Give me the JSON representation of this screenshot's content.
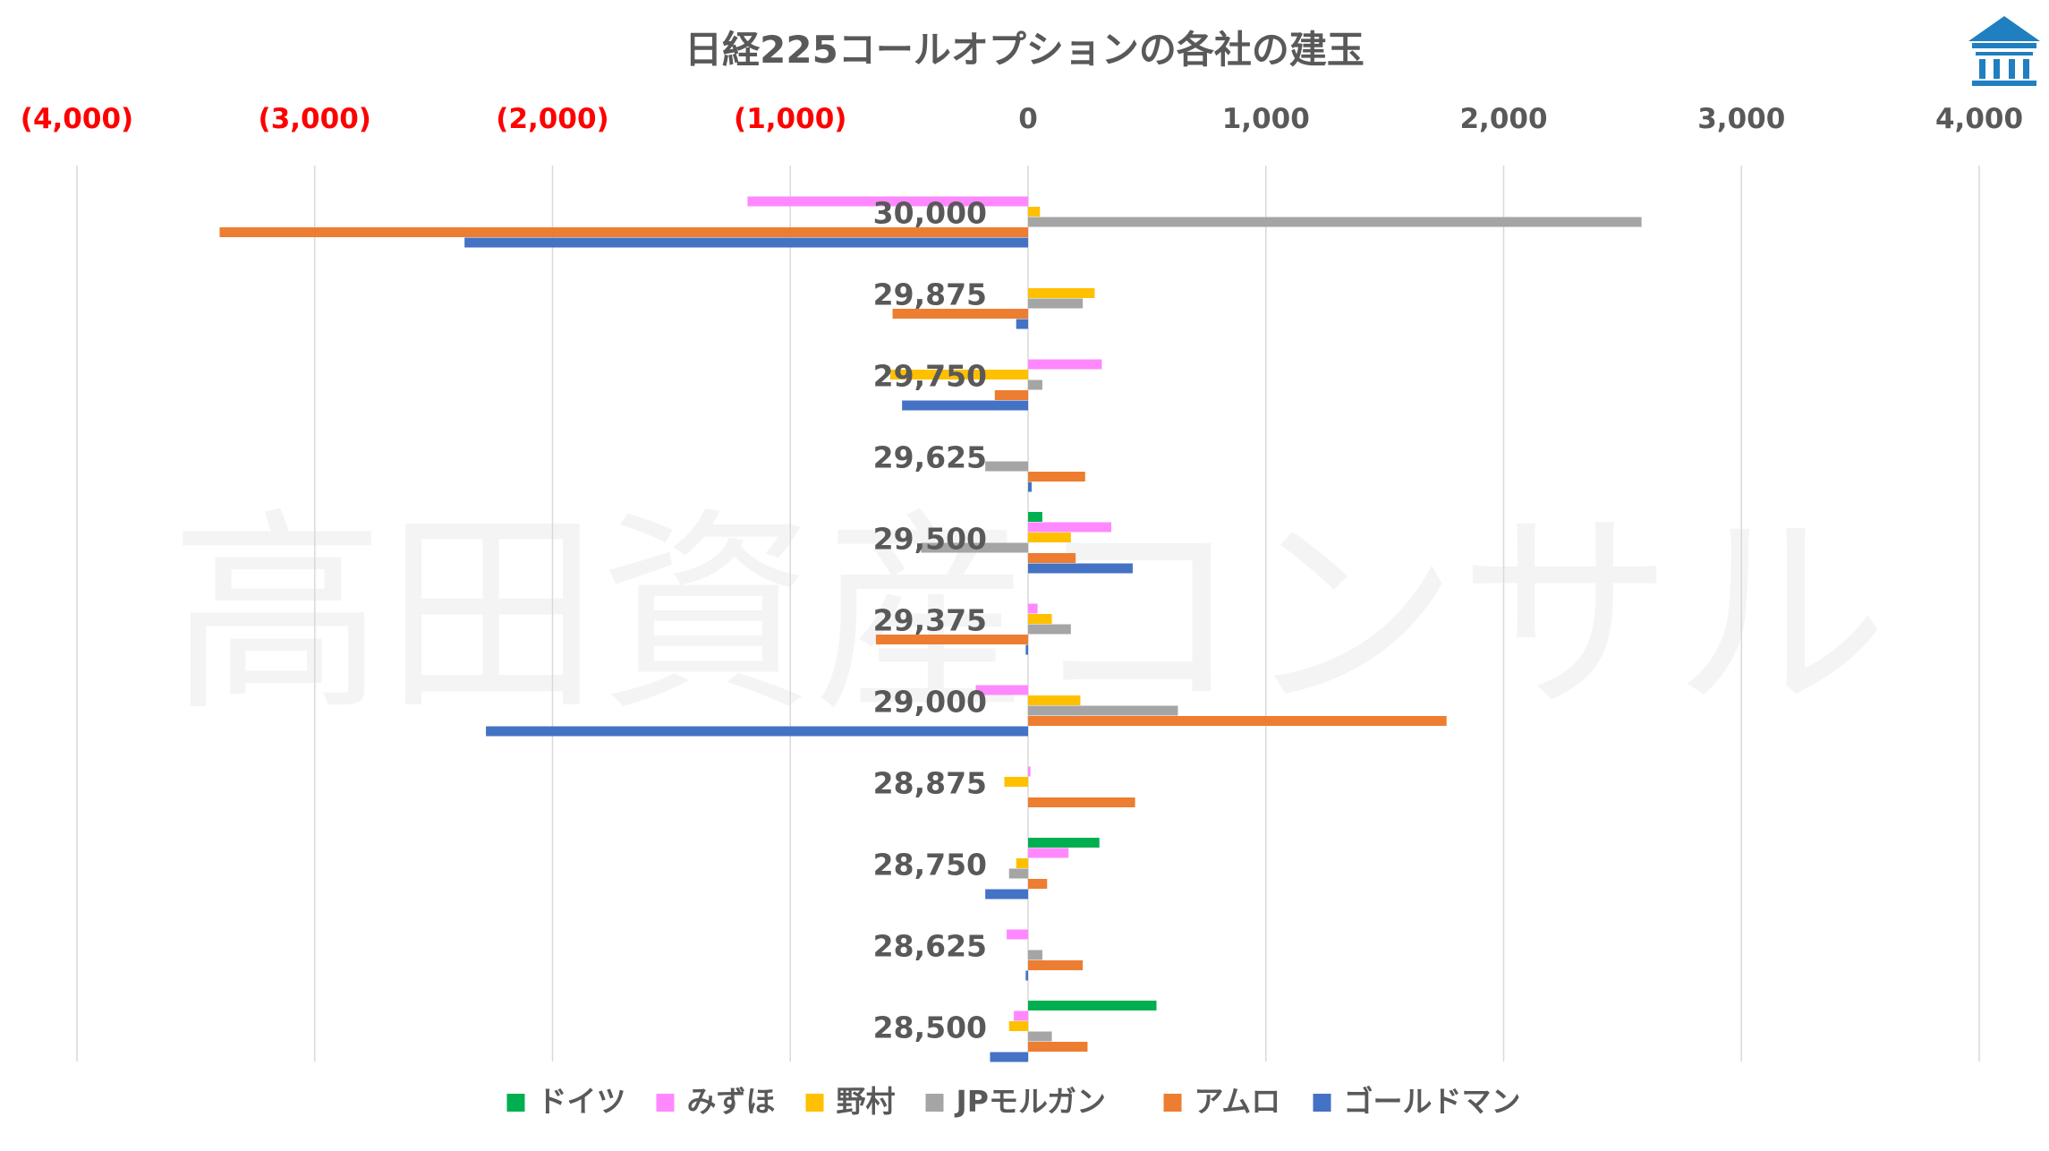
{
  "chart_data": {
    "type": "bar",
    "orientation": "horizontal",
    "title": "日経225コールオプションの各社の建玉",
    "watermark": "高田資産コンサル",
    "xlim": [
      -4000,
      4000
    ],
    "x_ticks": [
      {
        "value": -4000,
        "label": "(4,000)"
      },
      {
        "value": -3000,
        "label": "(3,000)"
      },
      {
        "value": -2000,
        "label": "(2,000)"
      },
      {
        "value": -1000,
        "label": "(1,000)"
      },
      {
        "value": 0,
        "label": "0"
      },
      {
        "value": 1000,
        "label": "1,000"
      },
      {
        "value": 2000,
        "label": "2,000"
      },
      {
        "value": 3000,
        "label": "3,000"
      },
      {
        "value": 4000,
        "label": "4,000"
      }
    ],
    "negative_tick_color": "#ff0000",
    "positive_tick_color": "#595959",
    "grid": true,
    "legend_position": "bottom",
    "categories": [
      "30,000",
      "29,875",
      "29,750",
      "29,625",
      "29,500",
      "29,375",
      "29,000",
      "28,875",
      "28,750",
      "28,625",
      "28,500"
    ],
    "series": [
      {
        "name": "ドイツ",
        "color": "#00b050",
        "values": [
          0,
          0,
          0,
          0,
          60,
          0,
          0,
          0,
          300,
          0,
          540
        ]
      },
      {
        "name": "みずほ",
        "color": "#ff88ff",
        "values": [
          -1180,
          0,
          310,
          0,
          350,
          40,
          -220,
          10,
          170,
          -90,
          -60
        ]
      },
      {
        "name": "野村",
        "color": "#ffc000",
        "values": [
          50,
          280,
          -580,
          0,
          180,
          100,
          220,
          -100,
          -50,
          0,
          -80
        ]
      },
      {
        "name": "JPモルガン",
        "color": "#a5a5a5",
        "values": [
          2580,
          230,
          60,
          -180,
          -450,
          180,
          630,
          0,
          -80,
          60,
          100
        ]
      },
      {
        "name": "アムロ",
        "color": "#ed7d31",
        "values": [
          -3400,
          -570,
          -140,
          240,
          200,
          -640,
          1760,
          450,
          80,
          230,
          250
        ]
      },
      {
        "name": "ゴールドマン",
        "color": "#4472c4",
        "values": [
          -2370,
          -50,
          -530,
          15,
          440,
          -10,
          -2280,
          0,
          -180,
          -10,
          -160
        ]
      }
    ]
  },
  "logo": {
    "icon": "bank-building-logo-icon",
    "color": "#1f7fc0"
  }
}
